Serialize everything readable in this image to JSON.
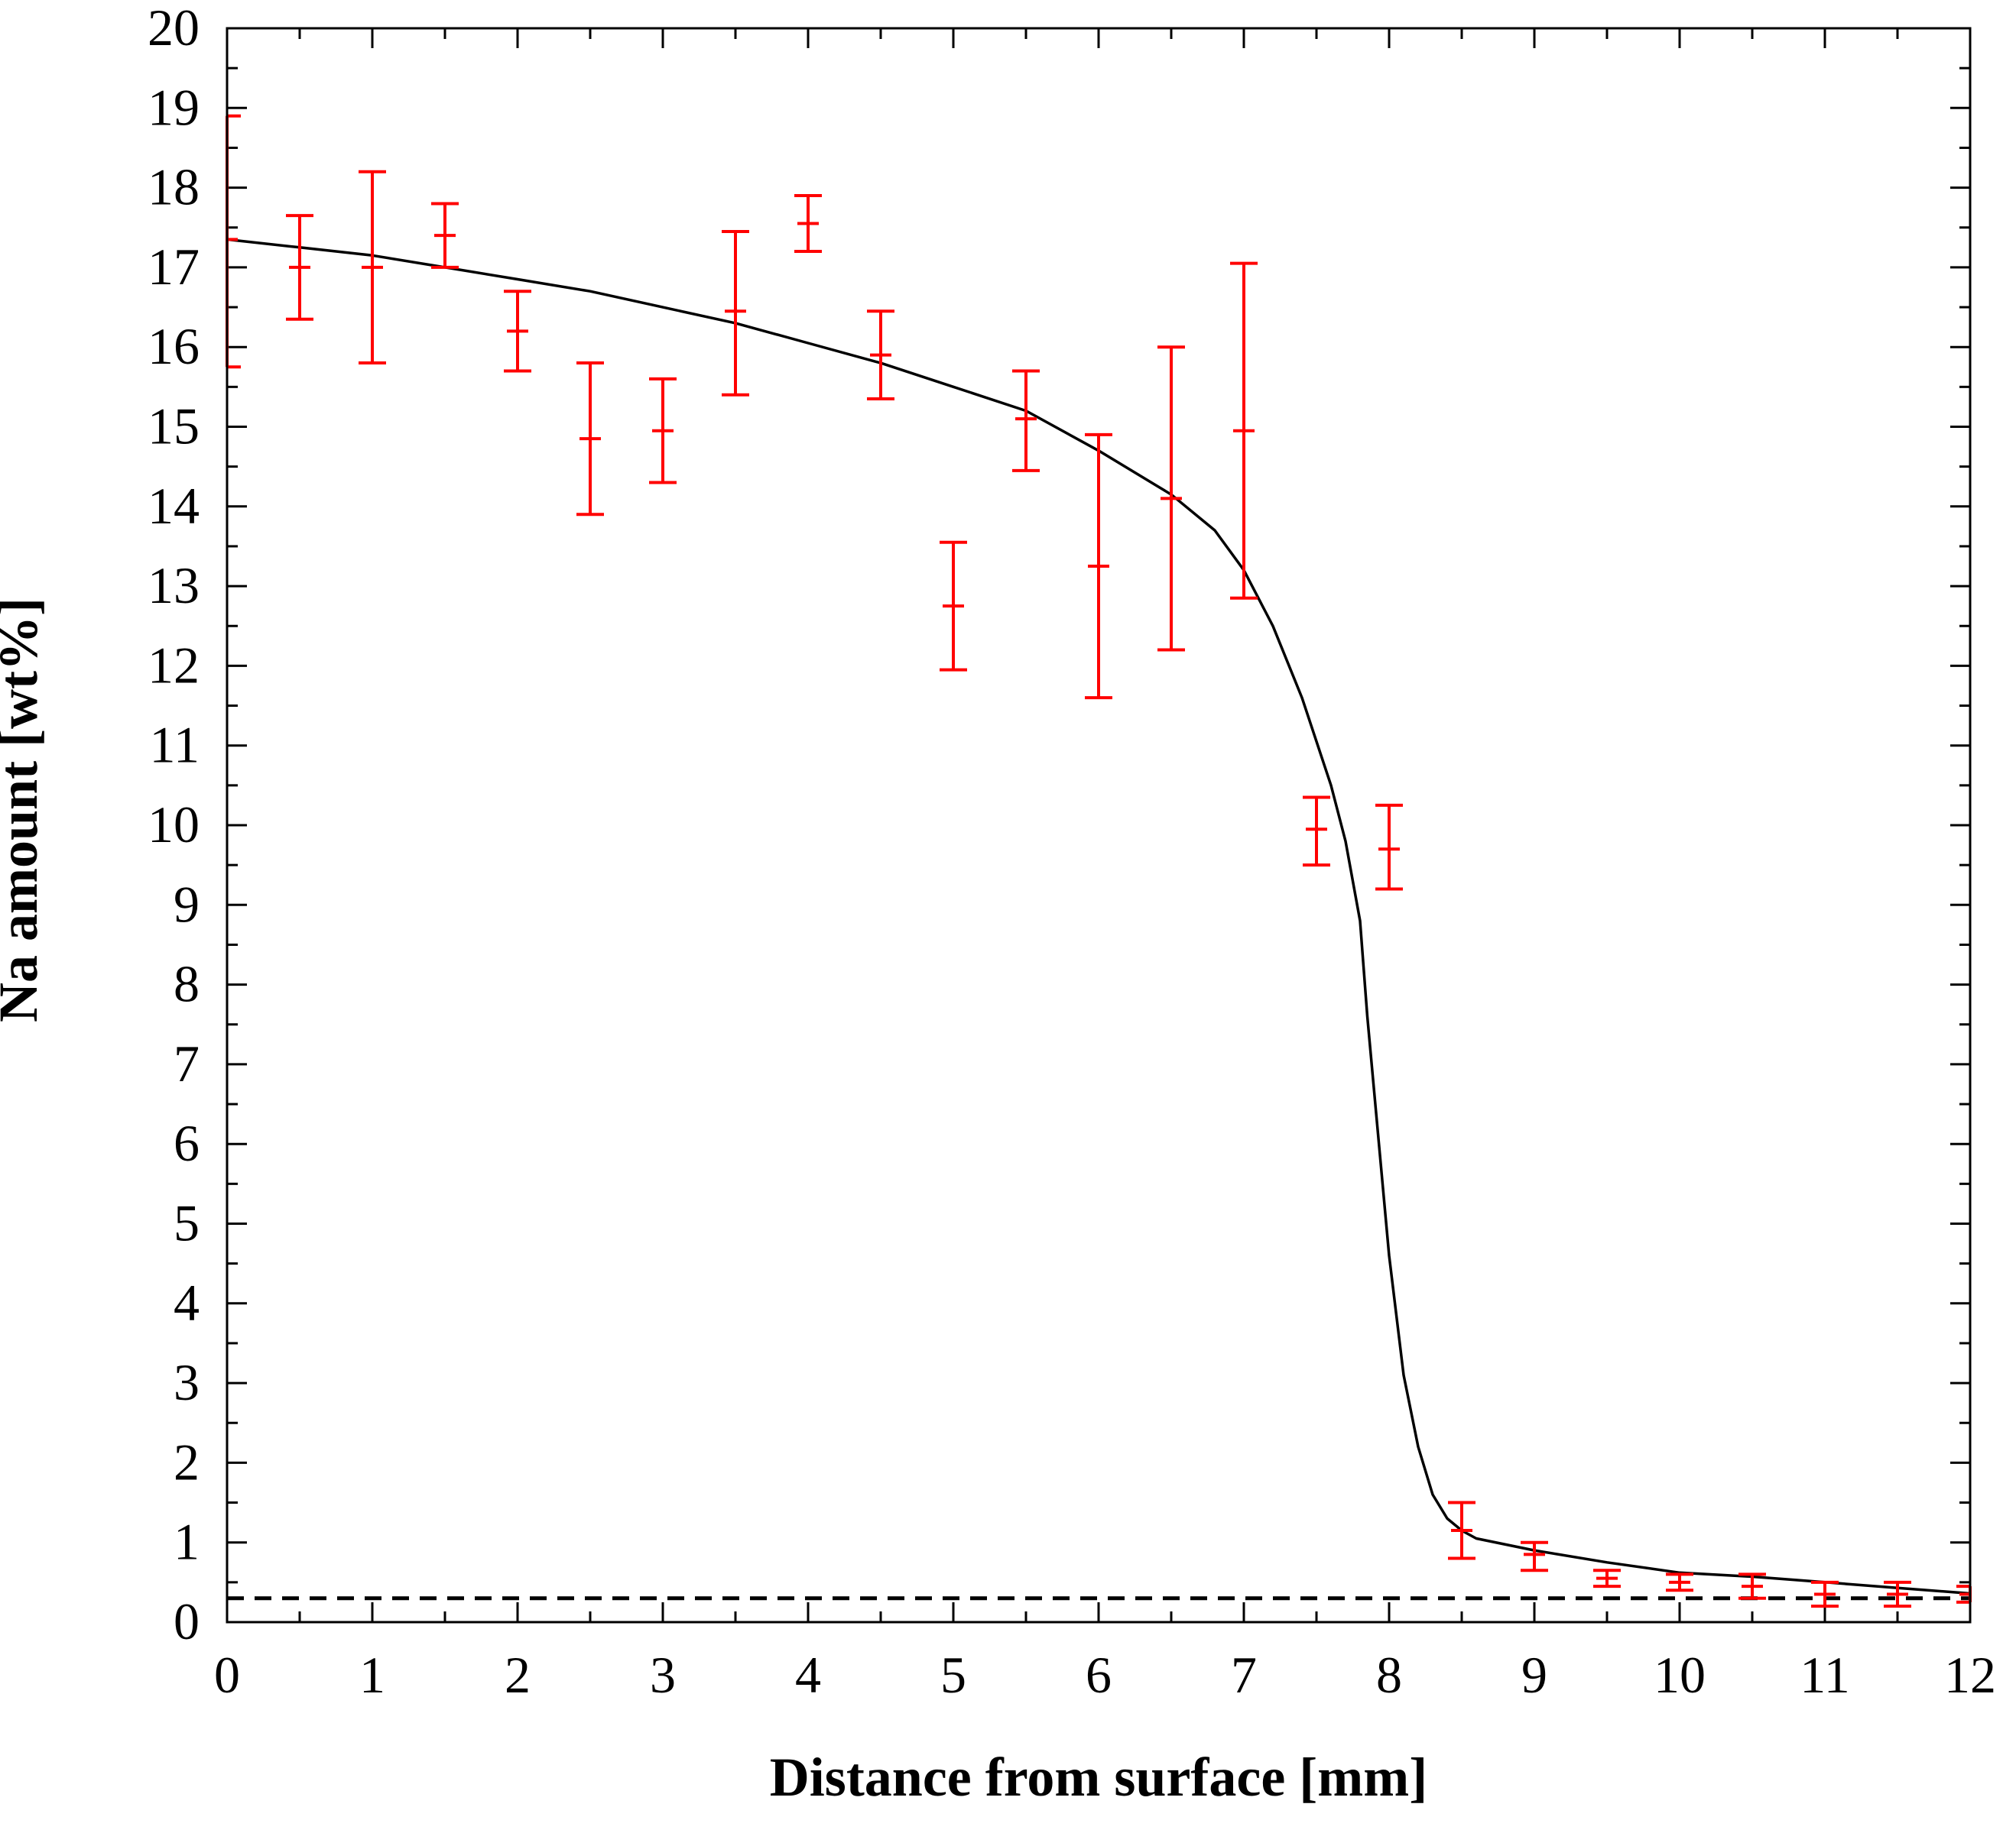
{
  "chart_data": {
    "type": "scatter",
    "xlabel": "Distance from surface [mm]",
    "ylabel": "Na amount [wt%]",
    "xlim": [
      0,
      12
    ],
    "ylim": [
      0,
      20
    ],
    "x_ticks": [
      "0",
      "1",
      "2",
      "3",
      "4",
      "5",
      "6",
      "7",
      "8",
      "9",
      "10",
      "11",
      "12"
    ],
    "y_ticks": [
      "0",
      "1",
      "2",
      "3",
      "4",
      "5",
      "6",
      "7",
      "8",
      "9",
      "10",
      "11",
      "12",
      "13",
      "14",
      "15",
      "16",
      "17",
      "18",
      "19",
      "20"
    ],
    "grid": false,
    "legend": "none",
    "series": [
      {
        "kind": "errorbar",
        "color": "#ff0000",
        "points": [
          {
            "x": 0.0,
            "y": 17.35,
            "lo": 15.75,
            "hi": 18.9
          },
          {
            "x": 0.5,
            "y": 17.0,
            "lo": 16.35,
            "hi": 17.65
          },
          {
            "x": 1.0,
            "y": 17.0,
            "lo": 15.8,
            "hi": 18.2
          },
          {
            "x": 1.5,
            "y": 17.4,
            "lo": 17.0,
            "hi": 17.8
          },
          {
            "x": 2.0,
            "y": 16.2,
            "lo": 15.7,
            "hi": 16.7
          },
          {
            "x": 2.5,
            "y": 14.85,
            "lo": 13.9,
            "hi": 15.8
          },
          {
            "x": 3.0,
            "y": 14.95,
            "lo": 14.3,
            "hi": 15.6
          },
          {
            "x": 3.5,
            "y": 16.45,
            "lo": 15.4,
            "hi": 17.45
          },
          {
            "x": 4.0,
            "y": 17.55,
            "lo": 17.2,
            "hi": 17.9
          },
          {
            "x": 4.5,
            "y": 15.9,
            "lo": 15.35,
            "hi": 16.45
          },
          {
            "x": 5.0,
            "y": 12.75,
            "lo": 11.95,
            "hi": 13.55
          },
          {
            "x": 5.5,
            "y": 15.1,
            "lo": 14.45,
            "hi": 15.7
          },
          {
            "x": 6.0,
            "y": 13.25,
            "lo": 11.6,
            "hi": 14.9
          },
          {
            "x": 6.5,
            "y": 14.1,
            "lo": 12.2,
            "hi": 16.0
          },
          {
            "x": 7.0,
            "y": 14.95,
            "lo": 12.85,
            "hi": 17.05
          },
          {
            "x": 7.5,
            "y": 9.95,
            "lo": 9.5,
            "hi": 10.35
          },
          {
            "x": 8.0,
            "y": 9.7,
            "lo": 9.2,
            "hi": 10.25
          },
          {
            "x": 8.5,
            "y": 1.15,
            "lo": 0.8,
            "hi": 1.5
          },
          {
            "x": 9.0,
            "y": 0.85,
            "lo": 0.65,
            "hi": 1.0
          },
          {
            "x": 9.5,
            "y": 0.55,
            "lo": 0.45,
            "hi": 0.65
          },
          {
            "x": 10.0,
            "y": 0.5,
            "lo": 0.4,
            "hi": 0.6
          },
          {
            "x": 10.5,
            "y": 0.45,
            "lo": 0.3,
            "hi": 0.6
          },
          {
            "x": 11.0,
            "y": 0.35,
            "lo": 0.2,
            "hi": 0.5
          },
          {
            "x": 11.5,
            "y": 0.35,
            "lo": 0.2,
            "hi": 0.5
          },
          {
            "x": 12.0,
            "y": 0.35,
            "lo": 0.25,
            "hi": 0.45
          }
        ]
      },
      {
        "kind": "line",
        "color": "#000000",
        "x": [
          0,
          0.5,
          1,
          1.5,
          2,
          2.5,
          3,
          3.5,
          4,
          4.5,
          5,
          5.5,
          6,
          6.5,
          6.8,
          7.0,
          7.2,
          7.4,
          7.6,
          7.7,
          7.8,
          7.85,
          7.9,
          8.0,
          8.1,
          8.2,
          8.3,
          8.4,
          8.5,
          8.6,
          9.0,
          9.5,
          10.0,
          10.5,
          11.0,
          11.5,
          12.0
        ],
        "y": [
          17.35,
          17.25,
          17.15,
          17.0,
          16.85,
          16.7,
          16.5,
          16.3,
          16.05,
          15.8,
          15.5,
          15.2,
          14.7,
          14.15,
          13.7,
          13.2,
          12.5,
          11.6,
          10.5,
          9.8,
          8.8,
          7.6,
          6.6,
          4.6,
          3.1,
          2.2,
          1.6,
          1.3,
          1.15,
          1.05,
          0.9,
          0.75,
          0.62,
          0.57,
          0.5,
          0.43,
          0.36
        ]
      },
      {
        "kind": "hline",
        "style": "dashed",
        "color": "#000000",
        "y": 0.3
      }
    ]
  }
}
